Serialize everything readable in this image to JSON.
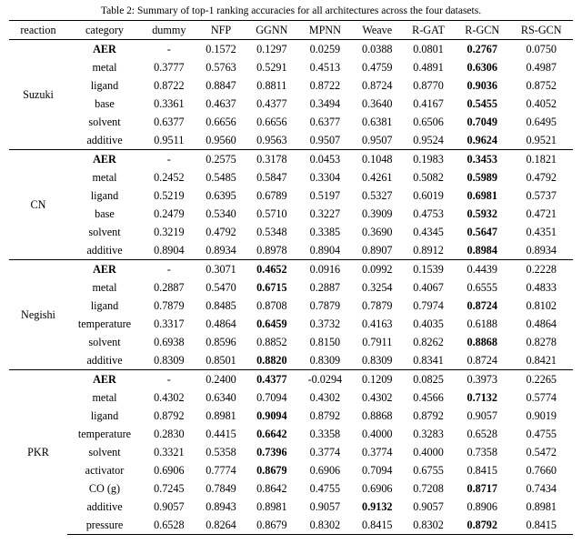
{
  "caption": "Table 2: Summary of top-1 ranking accuracies for all architectures across the four datasets.",
  "columns": [
    "reaction",
    "category",
    "dummy",
    "NFP",
    "GGNN",
    "MPNN",
    "Weave",
    "R-GAT",
    "R-GCN",
    "RS-GCN"
  ],
  "bold_col_index": 8,
  "sections": [
    {
      "reaction": "Suzuki",
      "rows": [
        {
          "category": "AER",
          "cat_bold": true,
          "values": [
            "-",
            "0.1572",
            "0.1297",
            "0.0259",
            "0.0388",
            "0.0801",
            "0.2767",
            "0.0750"
          ],
          "bold_idx": [
            6
          ]
        },
        {
          "category": "metal",
          "values": [
            "0.3777",
            "0.5763",
            "0.5291",
            "0.4513",
            "0.4759",
            "0.4891",
            "0.6306",
            "0.4987"
          ],
          "bold_idx": [
            6
          ]
        },
        {
          "category": "ligand",
          "values": [
            "0.8722",
            "0.8847",
            "0.8811",
            "0.8722",
            "0.8724",
            "0.8770",
            "0.9036",
            "0.8752"
          ],
          "bold_idx": [
            6
          ]
        },
        {
          "category": "base",
          "values": [
            "0.3361",
            "0.4637",
            "0.4377",
            "0.3494",
            "0.3640",
            "0.4167",
            "0.5455",
            "0.4052"
          ],
          "bold_idx": [
            6
          ]
        },
        {
          "category": "solvent",
          "values": [
            "0.6377",
            "0.6656",
            "0.6656",
            "0.6377",
            "0.6381",
            "0.6506",
            "0.7049",
            "0.6495"
          ],
          "bold_idx": [
            6
          ]
        },
        {
          "category": "additive",
          "values": [
            "0.9511",
            "0.9560",
            "0.9563",
            "0.9507",
            "0.9507",
            "0.9524",
            "0.9624",
            "0.9521"
          ],
          "bold_idx": [
            6
          ]
        }
      ]
    },
    {
      "reaction": "CN",
      "rows": [
        {
          "category": "AER",
          "cat_bold": true,
          "values": [
            "-",
            "0.2575",
            "0.3178",
            "0.0453",
            "0.1048",
            "0.1983",
            "0.3453",
            "0.1821"
          ],
          "bold_idx": [
            6
          ]
        },
        {
          "category": "metal",
          "values": [
            "0.2452",
            "0.5485",
            "0.5847",
            "0.3304",
            "0.4261",
            "0.5082",
            "0.5989",
            "0.4792"
          ],
          "bold_idx": [
            6
          ]
        },
        {
          "category": "ligand",
          "values": [
            "0.5219",
            "0.6395",
            "0.6789",
            "0.5197",
            "0.5327",
            "0.6019",
            "0.6981",
            "0.5737"
          ],
          "bold_idx": [
            6
          ]
        },
        {
          "category": "base",
          "values": [
            "0.2479",
            "0.5340",
            "0.5710",
            "0.3227",
            "0.3909",
            "0.4753",
            "0.5932",
            "0.4721"
          ],
          "bold_idx": [
            6
          ]
        },
        {
          "category": "solvent",
          "values": [
            "0.3219",
            "0.4792",
            "0.5348",
            "0.3385",
            "0.3690",
            "0.4345",
            "0.5647",
            "0.4351"
          ],
          "bold_idx": [
            6
          ]
        },
        {
          "category": "additive",
          "values": [
            "0.8904",
            "0.8934",
            "0.8978",
            "0.8904",
            "0.8907",
            "0.8912",
            "0.8984",
            "0.8934"
          ],
          "bold_idx": [
            6
          ]
        }
      ]
    },
    {
      "reaction": "Negishi",
      "rows": [
        {
          "category": "AER",
          "cat_bold": true,
          "values": [
            "-",
            "0.3071",
            "0.4652",
            "0.0916",
            "0.0992",
            "0.1539",
            "0.4439",
            "0.2228"
          ],
          "bold_idx": [
            2
          ]
        },
        {
          "category": "metal",
          "values": [
            "0.2887",
            "0.5470",
            "0.6715",
            "0.2887",
            "0.3254",
            "0.4067",
            "0.6555",
            "0.4833"
          ],
          "bold_idx": [
            2
          ]
        },
        {
          "category": "ligand",
          "values": [
            "0.7879",
            "0.8485",
            "0.8708",
            "0.7879",
            "0.7879",
            "0.7974",
            "0.8724",
            "0.8102"
          ],
          "bold_idx": [
            6
          ]
        },
        {
          "category": "temperature",
          "values": [
            "0.3317",
            "0.4864",
            "0.6459",
            "0.3732",
            "0.4163",
            "0.4035",
            "0.6188",
            "0.4864"
          ],
          "bold_idx": [
            2
          ]
        },
        {
          "category": "solvent",
          "values": [
            "0.6938",
            "0.8596",
            "0.8852",
            "0.8150",
            "0.7911",
            "0.8262",
            "0.8868",
            "0.8278"
          ],
          "bold_idx": [
            6
          ]
        },
        {
          "category": "additive",
          "values": [
            "0.8309",
            "0.8501",
            "0.8820",
            "0.8309",
            "0.8309",
            "0.8341",
            "0.8724",
            "0.8421"
          ],
          "bold_idx": [
            2
          ]
        }
      ]
    },
    {
      "reaction": "PKR",
      "rows": [
        {
          "category": "AER",
          "cat_bold": true,
          "values": [
            "-",
            "0.2400",
            "0.4377",
            "-0.0294",
            "0.1209",
            "0.0825",
            "0.3973",
            "0.2265"
          ],
          "bold_idx": [
            2
          ]
        },
        {
          "category": "metal",
          "values": [
            "0.4302",
            "0.6340",
            "0.7094",
            "0.4302",
            "0.4302",
            "0.4566",
            "0.7132",
            "0.5774"
          ],
          "bold_idx": [
            6
          ]
        },
        {
          "category": "ligand",
          "values": [
            "0.8792",
            "0.8981",
            "0.9094",
            "0.8792",
            "0.8868",
            "0.8792",
            "0.9057",
            "0.9019"
          ],
          "bold_idx": [
            2
          ]
        },
        {
          "category": "temperature",
          "values": [
            "0.2830",
            "0.4415",
            "0.6642",
            "0.3358",
            "0.4000",
            "0.3283",
            "0.6528",
            "0.4755"
          ],
          "bold_idx": [
            2
          ]
        },
        {
          "category": "solvent",
          "values": [
            "0.3321",
            "0.5358",
            "0.7396",
            "0.3774",
            "0.3774",
            "0.4000",
            "0.7358",
            "0.5472"
          ],
          "bold_idx": [
            2
          ]
        },
        {
          "category": "activator",
          "values": [
            "0.6906",
            "0.7774",
            "0.8679",
            "0.6906",
            "0.7094",
            "0.6755",
            "0.8415",
            "0.7660"
          ],
          "bold_idx": [
            2
          ]
        },
        {
          "category": "CO (g)",
          "values": [
            "0.7245",
            "0.7849",
            "0.8642",
            "0.4755",
            "0.6906",
            "0.7208",
            "0.8717",
            "0.7434"
          ],
          "bold_idx": [
            6
          ]
        },
        {
          "category": "additive",
          "values": [
            "0.9057",
            "0.8943",
            "0.8981",
            "0.9057",
            "0.9132",
            "0.9057",
            "0.8906",
            "0.8981"
          ],
          "bold_idx": [
            4
          ]
        },
        {
          "category": "pressure",
          "values": [
            "0.6528",
            "0.8264",
            "0.8679",
            "0.8302",
            "0.8415",
            "0.8302",
            "0.8792",
            "0.8415"
          ],
          "bold_idx": [
            6
          ]
        }
      ]
    }
  ]
}
